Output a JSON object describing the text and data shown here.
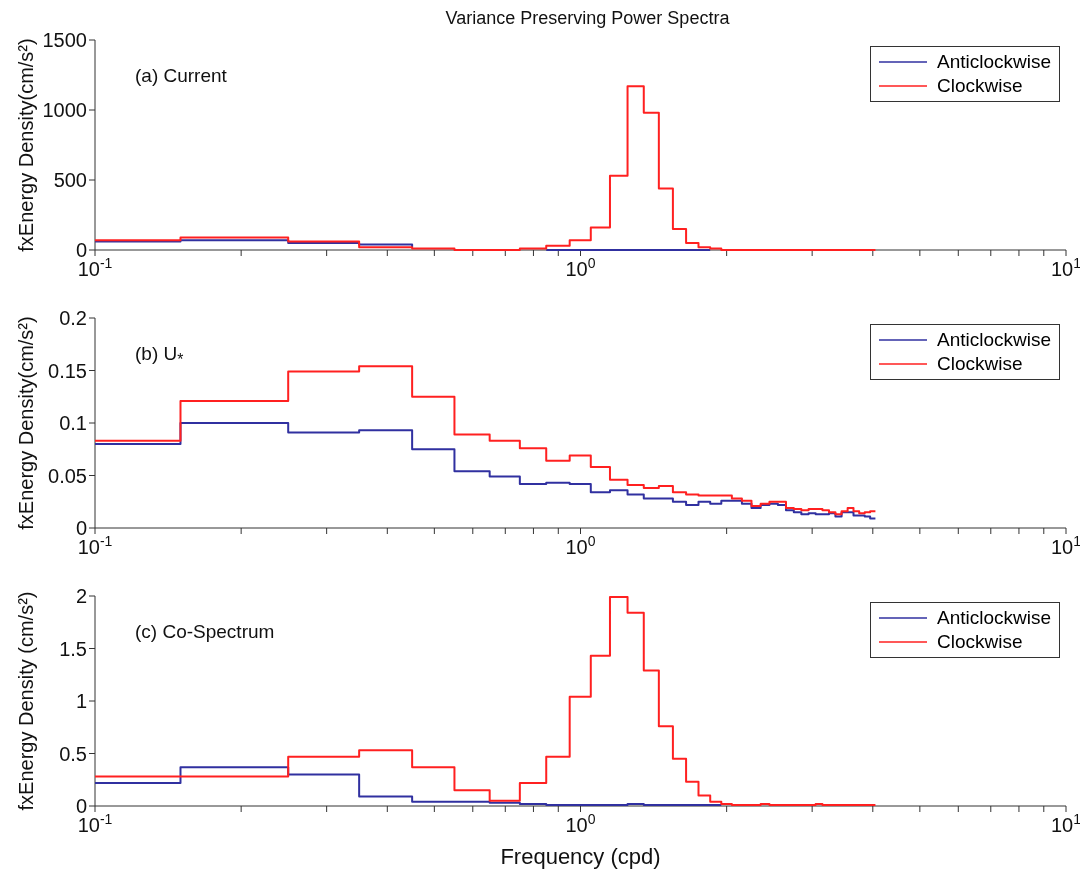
{
  "chart_data": [
    {
      "type": "step",
      "title": "Variance Preserving Power Spectra",
      "ylabel": "fxEnergy Density(cm/s²)",
      "annotations": [
        "(a) Current"
      ],
      "x": [
        0.1,
        0.15,
        0.25,
        0.35,
        0.45,
        0.55,
        0.65,
        0.75,
        0.85,
        0.95,
        1.05,
        1.15,
        1.25,
        1.35,
        1.45,
        1.55,
        1.65,
        1.75,
        1.85,
        1.95,
        2.05,
        2.15,
        2.25,
        2.35,
        2.45,
        2.55,
        2.65,
        2.75,
        2.85,
        2.95,
        3.05,
        3.15,
        3.25,
        3.35,
        3.45,
        3.55,
        3.65,
        3.75,
        3.85,
        3.95,
        4.05
      ],
      "series": [
        {
          "name": "Anticlockwise",
          "color": "#3030a0",
          "values": [
            60,
            70,
            50,
            40,
            20,
            null,
            null,
            null,
            0,
            0,
            0,
            0,
            0,
            0,
            0,
            0,
            0,
            0,
            0,
            null,
            null,
            null,
            null,
            null,
            null,
            null,
            null,
            null,
            null,
            null,
            null,
            null,
            null,
            null,
            null,
            null,
            null,
            null,
            null,
            null,
            null
          ]
        },
        {
          "name": "Clockwise",
          "color": "#ff2020",
          "values": [
            70,
            90,
            60,
            20,
            10,
            0,
            0,
            10,
            30,
            70,
            160,
            530,
            1170,
            980,
            440,
            150,
            50,
            20,
            10,
            0,
            0,
            0,
            0,
            0,
            0,
            0,
            0,
            0,
            0,
            0,
            0,
            0,
            0,
            0,
            0,
            0,
            0,
            0,
            0,
            0,
            0
          ]
        }
      ],
      "log": "x",
      "xlim": [
        0.1,
        10
      ],
      "xticks": [
        {
          "value": 0.1,
          "label": "10$^{-1}$"
        },
        {
          "value": 0.2,
          "label": null
        },
        {
          "value": 0.3,
          "label": null
        },
        {
          "value": 0.4,
          "label": null
        },
        {
          "value": 0.5,
          "label": null
        },
        {
          "value": 0.6,
          "label": null
        },
        {
          "value": 0.7,
          "label": null
        },
        {
          "value": 0.8,
          "label": null
        },
        {
          "value": 0.9,
          "label": null
        },
        {
          "value": 1,
          "label": "10$^{0}$"
        },
        {
          "value": 2,
          "label": null
        },
        {
          "value": 3,
          "label": null
        },
        {
          "value": 4,
          "label": null
        },
        {
          "value": 5,
          "label": null
        },
        {
          "value": 6,
          "label": null
        },
        {
          "value": 7,
          "label": null
        },
        {
          "value": 8,
          "label": null
        },
        {
          "value": 9,
          "label": null
        },
        {
          "value": 10,
          "label": "10$^{1}$"
        }
      ],
      "ylim": [
        0,
        1500
      ],
      "yticks": [
        0,
        500,
        1000,
        1500
      ],
      "legend": "top right",
      "grid": false
    },
    {
      "type": "step",
      "ylabel": "fxEnergy Density(cm/s²)",
      "annotations": [
        "(b) U$_{*}$"
      ],
      "x": [
        0.1,
        0.15,
        0.25,
        0.35,
        0.45,
        0.55,
        0.65,
        0.75,
        0.85,
        0.95,
        1.05,
        1.15,
        1.25,
        1.35,
        1.45,
        1.55,
        1.65,
        1.75,
        1.85,
        1.95,
        2.05,
        2.15,
        2.25,
        2.35,
        2.45,
        2.55,
        2.65,
        2.75,
        2.85,
        2.95,
        3.05,
        3.15,
        3.25,
        3.35,
        3.45,
        3.55,
        3.65,
        3.75,
        3.85,
        3.95,
        4.05
      ],
      "series": [
        {
          "name": "Anticlockwise",
          "color": "#3030a0",
          "values": [
            0.08,
            0.1,
            0.091,
            0.093,
            0.075,
            0.054,
            0.049,
            0.042,
            0.043,
            0.042,
            0.034,
            0.036,
            0.032,
            0.028,
            0.028,
            0.025,
            0.022,
            0.025,
            0.023,
            0.026,
            0.026,
            0.023,
            0.019,
            0.022,
            0.023,
            0.022,
            0.017,
            0.015,
            0.013,
            0.014,
            0.013,
            0.013,
            0.014,
            0.011,
            0.015,
            0.015,
            0.012,
            0.012,
            0.011,
            0.009,
            0.009
          ]
        },
        {
          "name": "Clockwise",
          "color": "#ff2020",
          "values": [
            0.083,
            0.121,
            0.149,
            0.154,
            0.125,
            0.089,
            0.083,
            0.076,
            0.064,
            0.069,
            0.058,
            0.046,
            0.041,
            0.038,
            0.04,
            0.034,
            0.032,
            0.031,
            0.031,
            0.031,
            0.028,
            0.026,
            0.021,
            0.023,
            0.025,
            0.025,
            0.019,
            0.018,
            0.017,
            0.018,
            0.018,
            0.017,
            0.015,
            0.013,
            0.016,
            0.019,
            0.016,
            0.014,
            0.015,
            0.016,
            0.016
          ]
        }
      ],
      "log": "x",
      "xlim": [
        0.1,
        10
      ],
      "xticks": [
        {
          "value": 0.1,
          "label": "10$^{-1}$"
        },
        {
          "value": 0.2,
          "label": null
        },
        {
          "value": 0.3,
          "label": null
        },
        {
          "value": 0.4,
          "label": null
        },
        {
          "value": 0.5,
          "label": null
        },
        {
          "value": 0.6,
          "label": null
        },
        {
          "value": 0.7,
          "label": null
        },
        {
          "value": 0.8,
          "label": null
        },
        {
          "value": 0.9,
          "label": null
        },
        {
          "value": 1,
          "label": "10$^{0}$"
        },
        {
          "value": 2,
          "label": null
        },
        {
          "value": 3,
          "label": null
        },
        {
          "value": 4,
          "label": null
        },
        {
          "value": 5,
          "label": null
        },
        {
          "value": 6,
          "label": null
        },
        {
          "value": 7,
          "label": null
        },
        {
          "value": 8,
          "label": null
        },
        {
          "value": 9,
          "label": null
        },
        {
          "value": 10,
          "label": "10$^{1}$"
        }
      ],
      "ylim": [
        0,
        0.2
      ],
      "yticks": [
        0,
        0.05,
        0.1,
        0.15,
        0.2
      ],
      "legend": "top right",
      "grid": false
    },
    {
      "type": "step",
      "ylabel": "fxEnergy Density (cm/s²)",
      "xlabel": "Frequency (cpd)",
      "annotations": [
        "(c) Co-Spectrum"
      ],
      "x": [
        0.1,
        0.15,
        0.25,
        0.35,
        0.45,
        0.55,
        0.65,
        0.75,
        0.85,
        0.95,
        1.05,
        1.15,
        1.25,
        1.35,
        1.45,
        1.55,
        1.65,
        1.75,
        1.85,
        1.95,
        2.05,
        2.15,
        2.25,
        2.35,
        2.45,
        2.55,
        2.65,
        2.75,
        2.85,
        2.95,
        3.05,
        3.15,
        3.25,
        3.35,
        3.45,
        3.55,
        3.65,
        3.75,
        3.85,
        3.95,
        4.05
      ],
      "series": [
        {
          "name": "Anticlockwise",
          "color": "#3030a0",
          "values": [
            0.22,
            0.37,
            0.3,
            0.09,
            0.04,
            0.04,
            0.03,
            0.02,
            0.01,
            0.01,
            0.01,
            0.01,
            0.02,
            0.01,
            0.01,
            0.01,
            0.01,
            0.01,
            0.01,
            0.01,
            null,
            null,
            null,
            null,
            null,
            null,
            null,
            null,
            null,
            null,
            null,
            null,
            null,
            null,
            null,
            null,
            null,
            null,
            null,
            null,
            null
          ]
        },
        {
          "name": "Clockwise",
          "color": "#ff2020",
          "values": [
            0.28,
            0.28,
            0.47,
            0.53,
            0.37,
            0.15,
            0.05,
            0.22,
            0.47,
            1.04,
            1.43,
            1.99,
            1.84,
            1.29,
            0.76,
            0.45,
            0.23,
            0.1,
            0.04,
            0.02,
            0.01,
            0.01,
            0.01,
            0.02,
            0.01,
            0.01,
            0.01,
            0.01,
            0.01,
            0.01,
            0.02,
            0.01,
            0.01,
            0.01,
            0.01,
            0.01,
            0.01,
            0.01,
            0.01,
            0.01,
            0.01
          ]
        }
      ],
      "log": "x",
      "xlim": [
        0.1,
        10
      ],
      "xticks": [
        {
          "value": 0.1,
          "label": "10$^{-1}$"
        },
        {
          "value": 0.2,
          "label": null
        },
        {
          "value": 0.3,
          "label": null
        },
        {
          "value": 0.4,
          "label": null
        },
        {
          "value": 0.5,
          "label": null
        },
        {
          "value": 0.6,
          "label": null
        },
        {
          "value": 0.7,
          "label": null
        },
        {
          "value": 0.8,
          "label": null
        },
        {
          "value": 0.9,
          "label": null
        },
        {
          "value": 1,
          "label": "10$^{0}$"
        },
        {
          "value": 2,
          "label": null
        },
        {
          "value": 3,
          "label": null
        },
        {
          "value": 4,
          "label": null
        },
        {
          "value": 5,
          "label": null
        },
        {
          "value": 6,
          "label": null
        },
        {
          "value": 7,
          "label": null
        },
        {
          "value": 8,
          "label": null
        },
        {
          "value": 9,
          "label": null
        },
        {
          "value": 10,
          "label": "10$^{1}$"
        }
      ],
      "ylim": [
        0,
        2
      ],
      "yticks": [
        0,
        0.5,
        1,
        1.5,
        2
      ],
      "legend": "top right",
      "grid": false
    }
  ]
}
